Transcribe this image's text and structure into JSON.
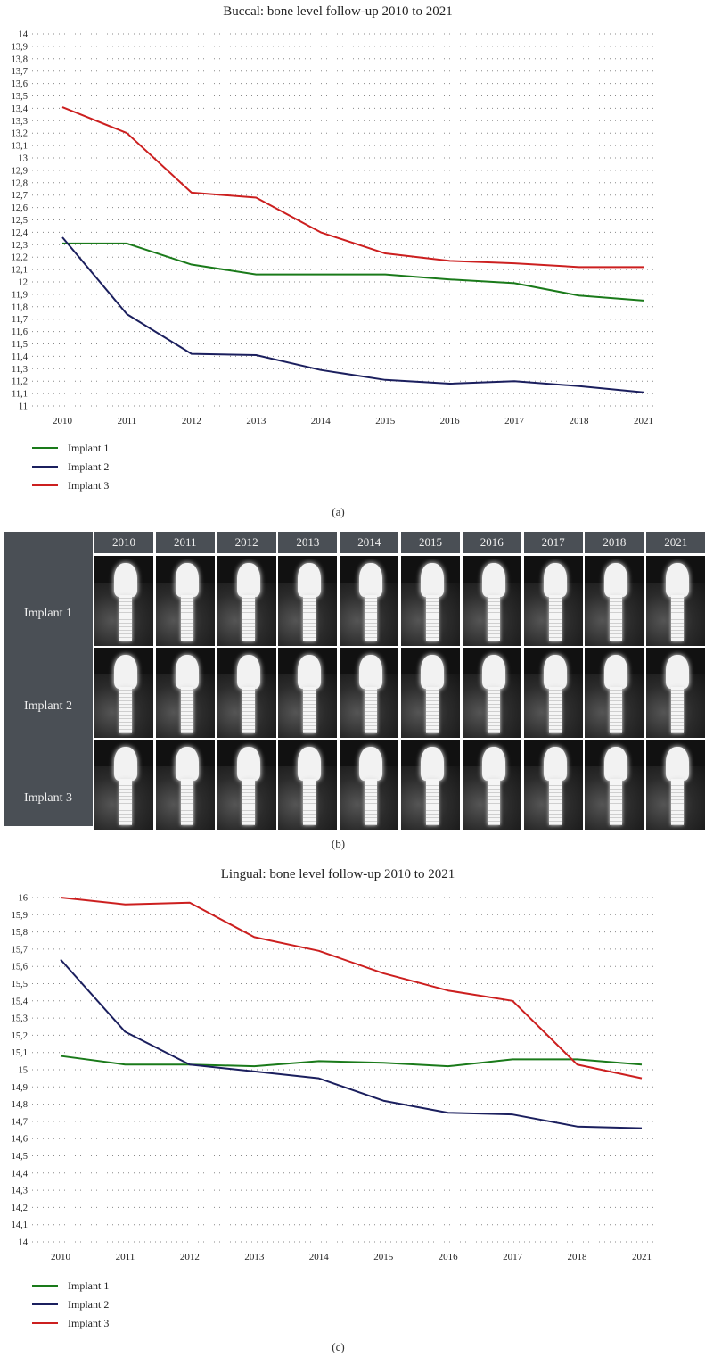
{
  "chart_data": [
    {
      "type": "line",
      "title": "Buccal: bone level follow-up 2010 to 2021",
      "x": [
        "2010",
        "2011",
        "2012",
        "2013",
        "2014",
        "2015",
        "2016",
        "2017",
        "2018",
        "2021"
      ],
      "ylim": [
        11,
        14
      ],
      "yticks": [
        "11",
        "11,1",
        "11,2",
        "11,3",
        "11,4",
        "11,5",
        "11,6",
        "11,7",
        "11,8",
        "11,9",
        "12",
        "12,1",
        "12,2",
        "12,3",
        "12,4",
        "12,5",
        "12,6",
        "12,7",
        "12,8",
        "12,9",
        "13",
        "13,1",
        "13,2",
        "13,3",
        "13,4",
        "13,5",
        "13,6",
        "13,7",
        "13,8",
        "13,9",
        "14"
      ],
      "grid": true,
      "legend": "bottom-left",
      "series": [
        {
          "name": "Implant 1",
          "color": "#1a7a1a",
          "values": [
            12.31,
            12.31,
            12.14,
            12.06,
            12.06,
            12.06,
            12.02,
            11.99,
            11.89,
            11.85
          ]
        },
        {
          "name": "Implant 2",
          "color": "#1b1f5e",
          "values": [
            12.36,
            11.74,
            11.42,
            11.41,
            11.29,
            11.21,
            11.18,
            11.2,
            11.16,
            11.11
          ]
        },
        {
          "name": "Implant 3",
          "color": "#cc1f1f",
          "values": [
            13.41,
            13.2,
            12.72,
            12.68,
            12.4,
            12.23,
            12.17,
            12.15,
            12.12,
            12.12
          ]
        }
      ],
      "caption": "(a)"
    },
    {
      "type": "line",
      "title": "Lingual: bone level follow-up 2010 to 2021",
      "x": [
        "2010",
        "2011",
        "2012",
        "2013",
        "2014",
        "2015",
        "2016",
        "2017",
        "2018",
        "2021"
      ],
      "ylim": [
        14,
        16
      ],
      "yticks": [
        "14",
        "14,1",
        "14,2",
        "14,3",
        "14,4",
        "14,5",
        "14,6",
        "14,7",
        "14,8",
        "14,9",
        "15",
        "15,1",
        "15,2",
        "15,3",
        "15,4",
        "15,5",
        "15,6",
        "15,7",
        "15,8",
        "15,9",
        "16"
      ],
      "grid": true,
      "legend": "bottom-left",
      "series": [
        {
          "name": "Implant 1",
          "color": "#1a7a1a",
          "values": [
            15.08,
            15.03,
            15.03,
            15.02,
            15.05,
            15.04,
            15.02,
            15.06,
            15.06,
            15.03
          ]
        },
        {
          "name": "Implant 2",
          "color": "#1b1f5e",
          "values": [
            15.64,
            15.22,
            15.03,
            14.99,
            14.95,
            14.82,
            14.75,
            14.74,
            14.67,
            14.66
          ]
        },
        {
          "name": "Implant 3",
          "color": "#cc1f1f",
          "values": [
            16.0,
            15.96,
            15.97,
            15.77,
            15.69,
            15.56,
            15.46,
            15.4,
            15.03,
            14.95
          ]
        }
      ],
      "caption": "(c)"
    }
  ],
  "image_panel": {
    "years": [
      "2010",
      "2011",
      "2012",
      "2013",
      "2014",
      "2015",
      "2016",
      "2017",
      "2018",
      "2021"
    ],
    "rows": [
      "Implant 1",
      "Implant 2",
      "Implant 3"
    ],
    "caption": "(b)"
  }
}
